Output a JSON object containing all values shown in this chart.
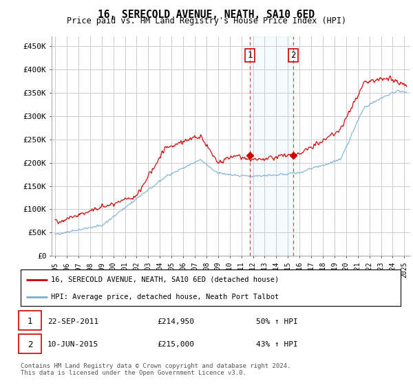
{
  "title": "16, SERECOLD AVENUE, NEATH, SA10 6ED",
  "subtitle": "Price paid vs. HM Land Registry's House Price Index (HPI)",
  "ylabel_ticks": [
    "£0",
    "£50K",
    "£100K",
    "£150K",
    "£200K",
    "£250K",
    "£300K",
    "£350K",
    "£400K",
    "£450K"
  ],
  "ytick_values": [
    0,
    50000,
    100000,
    150000,
    200000,
    250000,
    300000,
    350000,
    400000,
    450000
  ],
  "ylim": [
    0,
    470000
  ],
  "xlim_start": 1994.7,
  "xlim_end": 2025.5,
  "red_color": "#cc0000",
  "blue_color": "#7ab0d4",
  "marker1_date": 2011.73,
  "marker2_date": 2015.44,
  "marker1_price": 214950,
  "marker2_price": 215000,
  "annotation1_label": "1",
  "annotation2_label": "2",
  "legend_label_red": "16, SERECOLD AVENUE, NEATH, SA10 6ED (detached house)",
  "legend_label_blue": "HPI: Average price, detached house, Neath Port Talbot",
  "footer": "Contains HM Land Registry data © Crown copyright and database right 2024.\nThis data is licensed under the Open Government Licence v3.0.",
  "shaded_start": 2011.73,
  "shaded_end": 2015.44,
  "background_color": "#ffffff",
  "grid_color": "#cccccc"
}
